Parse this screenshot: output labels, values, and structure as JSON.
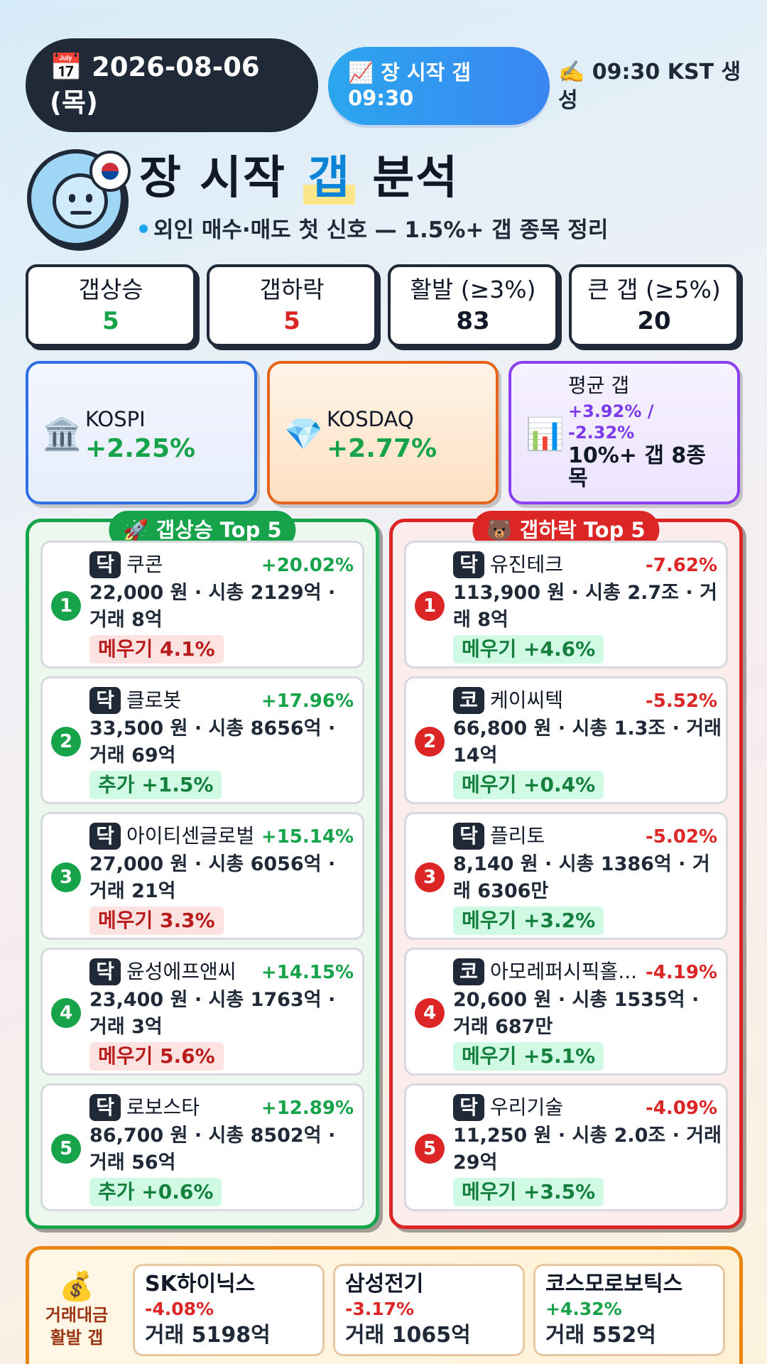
{
  "header": {
    "date": "📅 2026-08-06 (목)",
    "session": "📈 장 시작 갭 09:30",
    "generated": "✍️ 09:30 KST 생성"
  },
  "hero": {
    "title_pre": "장 시작 ",
    "title_hl": "갭",
    "title_post": " 분석",
    "subtitle": "외인 매수·매도 첫 신호 — 1.5%+ 갭 종목 정리",
    "avatar_icon": "neutral-face-icon",
    "flag_icon": "korea-flag-icon"
  },
  "stats": [
    {
      "label": "갭상승",
      "value": "5",
      "color": "#16a34a"
    },
    {
      "label": "갭하락",
      "value": "5",
      "color": "#dc2626"
    },
    {
      "label": "활발 (≥3%)",
      "value": "83",
      "color": "#111827"
    },
    {
      "label": "큰 갭 (≥5%)",
      "value": "20",
      "color": "#111827"
    }
  ],
  "indices": {
    "kospi": {
      "icon": "🏛️",
      "name": "KOSPI",
      "value": "+2.25%"
    },
    "kosdaq": {
      "icon": "💎",
      "name": "KOSDAQ",
      "value": "+2.77%"
    },
    "avg": {
      "icon": "📊",
      "label": "평균 갭",
      "value": "+3.92% / -2.32%",
      "extra": "10%+ 갭 8종목"
    }
  },
  "gap_up": {
    "title": "🚀 갭상승 Top 5",
    "color": "#16a34a",
    "items": [
      {
        "rank": "1",
        "market": "닥",
        "name": "쿠콘",
        "pct": "+20.02%",
        "detail": "22,000 원 · 시총 2129억 · 거래 8억",
        "tag": "메우기 4.1%",
        "tag_type": "fill"
      },
      {
        "rank": "2",
        "market": "닥",
        "name": "클로봇",
        "pct": "+17.96%",
        "detail": "33,500 원 · 시총 8656억 · 거래 69억",
        "tag": "추가 +1.5%",
        "tag_type": "add"
      },
      {
        "rank": "3",
        "market": "닥",
        "name": "아이티센글로벌",
        "pct": "+15.14%",
        "detail": "27,000 원 · 시총 6056억 · 거래 21억",
        "tag": "메우기 3.3%",
        "tag_type": "fill"
      },
      {
        "rank": "4",
        "market": "닥",
        "name": "윤성에프앤씨",
        "pct": "+14.15%",
        "detail": "23,400 원 · 시총 1763억 · 거래 3억",
        "tag": "메우기 5.6%",
        "tag_type": "fill"
      },
      {
        "rank": "5",
        "market": "닥",
        "name": "로보스타",
        "pct": "+12.89%",
        "detail": "86,700 원 · 시총 8502억 · 거래 56억",
        "tag": "추가 +0.6%",
        "tag_type": "add"
      }
    ]
  },
  "gap_down": {
    "title": "🐻 갭하락 Top 5",
    "color": "#dc2626",
    "items": [
      {
        "rank": "1",
        "market": "닥",
        "name": "유진테크",
        "pct": "-7.62%",
        "detail": "113,900 원 · 시총 2.7조 · 거래 8억",
        "tag": "메우기 +4.6%",
        "tag_type": "add"
      },
      {
        "rank": "2",
        "market": "코",
        "name": "케이씨텍",
        "pct": "-5.52%",
        "detail": "66,800 원 · 시총 1.3조 · 거래 14억",
        "tag": "메우기 +0.4%",
        "tag_type": "add"
      },
      {
        "rank": "3",
        "market": "닥",
        "name": "플리토",
        "pct": "-5.02%",
        "detail": "8,140 원 · 시총 1386억 · 거래 6306만",
        "tag": "메우기 +3.2%",
        "tag_type": "add"
      },
      {
        "rank": "4",
        "market": "코",
        "name": "아모레퍼시픽홀...",
        "pct": "-4.19%",
        "detail": "20,600 원 · 시총 1535억 · 거래 687만",
        "tag": "메우기 +5.1%",
        "tag_type": "add"
      },
      {
        "rank": "5",
        "market": "닥",
        "name": "우리기술",
        "pct": "-4.09%",
        "detail": "11,250 원 · 시총 2.0조 · 거래 29억",
        "tag": "메우기 +3.5%",
        "tag_type": "add"
      }
    ]
  },
  "volume": {
    "icon": "💰",
    "label": "거래대금 활발 갭",
    "items": [
      {
        "name": "SK하이닉스",
        "pct": "-4.08%",
        "vol": "거래 5198억",
        "color": "#dc2626"
      },
      {
        "name": "삼성전기",
        "pct": "-3.17%",
        "vol": "거래 1065억",
        "color": "#dc2626"
      },
      {
        "name": "코스모로보틱스",
        "pct": "+4.32%",
        "vol": "거래 552억",
        "color": "#16a34a"
      }
    ]
  }
}
